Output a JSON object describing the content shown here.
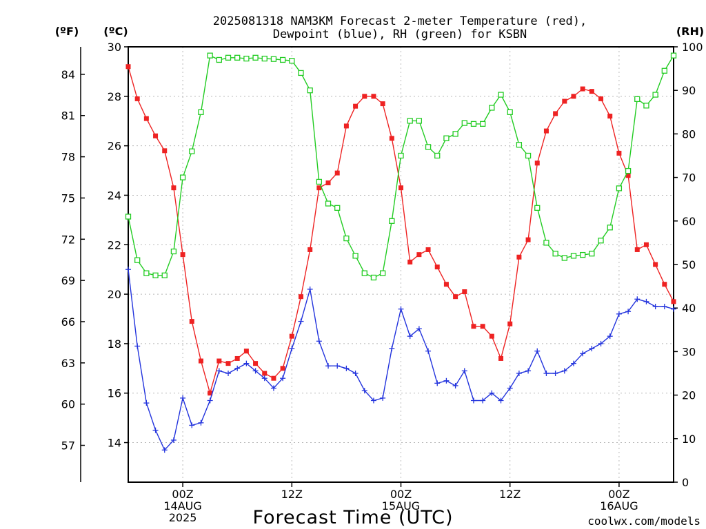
{
  "title": {
    "line1": "2025081318 NAM3KM Forecast 2-meter Temperature (red),",
    "line2": "Dewpoint (blue), RH (green) for KSBN"
  },
  "unit_labels": {
    "f": "(ºF)",
    "c": "(ºC)",
    "rh": "(RH)"
  },
  "xlabel": "Forecast Time (UTC)",
  "credit": "coolwx.com/models",
  "credit_color": "#e0304a",
  "colors": {
    "temperature": "#ee2222",
    "dewpoint": "#2233dd",
    "rh": "#22cc22"
  },
  "chart_data": {
    "type": "line",
    "x_unit": "hours since 2025-08-13 18Z",
    "xlim": [
      0,
      60
    ],
    "ylim_c": [
      12.4,
      30
    ],
    "ylim_rh": [
      0,
      100
    ],
    "ylim_f_ticks": [
      57,
      60,
      63,
      66,
      69,
      72,
      75,
      78,
      81,
      84
    ],
    "yticks_c": [
      14,
      16,
      18,
      20,
      22,
      24,
      26,
      28,
      30
    ],
    "yticks_rh": [
      0,
      10,
      20,
      30,
      40,
      50,
      60,
      70,
      80,
      90,
      100
    ],
    "grid": true,
    "x_ticks": [
      {
        "x": 6,
        "labels": [
          "00Z",
          "14AUG",
          "2025"
        ]
      },
      {
        "x": 18,
        "labels": [
          "12Z"
        ]
      },
      {
        "x": 30,
        "labels": [
          "00Z",
          "15AUG"
        ]
      },
      {
        "x": 42,
        "labels": [
          "12Z"
        ]
      },
      {
        "x": 54,
        "labels": [
          "00Z",
          "16AUG"
        ]
      }
    ],
    "x": [
      0,
      1,
      2,
      3,
      4,
      5,
      6,
      7,
      8,
      9,
      10,
      11,
      12,
      13,
      14,
      15,
      16,
      17,
      18,
      19,
      20,
      21,
      22,
      23,
      24,
      25,
      26,
      27,
      28,
      29,
      30,
      31,
      32,
      33,
      34,
      35,
      36,
      37,
      38,
      39,
      40,
      41,
      42,
      43,
      44,
      45,
      46,
      47,
      48,
      49,
      50,
      51,
      52,
      53,
      54,
      55,
      56,
      57,
      58,
      59,
      60
    ],
    "series": [
      {
        "name": "Temperature",
        "unit": "°C",
        "color": "#ee2222",
        "marker": "filled-square",
        "values": [
          29.2,
          27.9,
          27.1,
          26.4,
          25.8,
          24.3,
          21.6,
          18.9,
          17.3,
          16.0,
          17.3,
          17.2,
          17.4,
          17.7,
          17.2,
          16.8,
          16.6,
          17.0,
          18.3,
          19.9,
          21.8,
          24.3,
          24.5,
          24.9,
          26.8,
          27.6,
          28.0,
          28.0,
          27.7,
          26.3,
          24.3,
          21.3,
          21.6,
          21.8,
          21.1,
          20.4,
          19.9,
          20.1,
          18.7,
          18.7,
          18.3,
          17.4,
          18.8,
          21.5,
          22.2,
          25.3,
          26.6,
          27.3,
          27.8,
          28.0,
          28.3,
          28.2,
          27.9,
          27.2,
          25.7,
          24.8,
          21.8,
          22.0,
          21.2,
          20.4,
          19.7
        ]
      },
      {
        "name": "Dewpoint",
        "unit": "°C",
        "color": "#2233dd",
        "marker": "plus",
        "values": [
          21.0,
          17.9,
          15.6,
          14.5,
          13.7,
          14.1,
          15.8,
          14.7,
          14.8,
          15.7,
          16.9,
          16.8,
          17.0,
          17.2,
          16.9,
          16.6,
          16.2,
          16.6,
          17.8,
          18.9,
          20.2,
          18.1,
          17.1,
          17.1,
          17.0,
          16.8,
          16.1,
          15.7,
          15.8,
          17.8,
          19.4,
          18.3,
          18.6,
          17.7,
          16.4,
          16.5,
          16.3,
          16.9,
          15.7,
          15.7,
          16.0,
          15.7,
          16.2,
          16.8,
          16.9,
          17.7,
          16.8,
          16.8,
          16.9,
          17.2,
          17.6,
          17.8,
          18.0,
          18.3,
          19.2,
          19.3,
          19.8,
          19.7,
          19.5,
          19.5,
          19.4
        ]
      },
      {
        "name": "RH",
        "unit": "%",
        "color": "#22cc22",
        "marker": "open-square",
        "values": [
          61,
          51,
          48,
          47.5,
          47.5,
          53,
          70,
          76,
          85,
          98,
          97,
          97.5,
          97.5,
          97.3,
          97.5,
          97.3,
          97.2,
          97,
          96.8,
          94,
          90,
          69,
          64,
          63,
          56,
          52,
          48,
          47,
          48,
          60,
          75,
          83,
          83,
          77,
          75,
          79,
          80,
          82.5,
          82.3,
          82.3,
          86,
          89,
          85,
          77.5,
          75,
          63,
          55,
          52.5,
          51.5,
          52,
          52.2,
          52.5,
          55.5,
          58.5,
          67.5,
          71.5,
          88,
          86.5,
          89,
          94.5,
          98
        ]
      }
    ]
  }
}
